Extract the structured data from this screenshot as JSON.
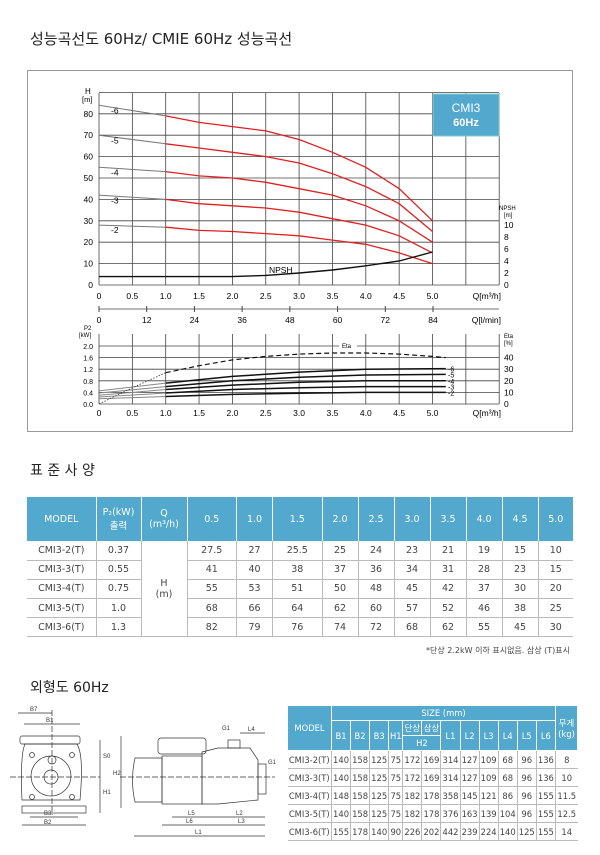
{
  "title": "성능곡선도 60Hz/ CMIE 60Hz 성능곡선",
  "chart_data": {
    "type": "line",
    "badge": [
      "CMI3",
      "60Hz"
    ],
    "upper": {
      "ylabel": "H",
      "yunit": "[m]",
      "yticks": [
        0,
        10,
        20,
        30,
        40,
        50,
        60,
        70,
        80
      ],
      "ylim": [
        0,
        90
      ],
      "y2label": "NPSH",
      "y2unit": "[m]",
      "y2ticks": [
        0,
        2,
        4,
        6,
        8,
        10
      ],
      "xlabel": "Q[m³/h]",
      "xticks": [
        "0",
        "0.5",
        "1.0",
        "1.5",
        "2.0",
        "2.5",
        "3.0",
        "3.5",
        "4.0",
        "4.5",
        "5.0"
      ],
      "xlim": [
        0,
        6
      ],
      "x2label": "Q[l/min]",
      "x2ticks": [
        "0",
        "12",
        "24",
        "36",
        "48",
        "60",
        "72",
        "84"
      ],
      "series": [
        {
          "name": "-6",
          "x": [
            0,
            1,
            1.5,
            2,
            2.5,
            3,
            3.5,
            4,
            4.5,
            5
          ],
          "y": [
            84,
            79,
            76,
            74,
            72,
            68,
            62,
            55,
            45,
            30
          ]
        },
        {
          "name": "-5",
          "x": [
            0,
            1,
            1.5,
            2,
            2.5,
            3,
            3.5,
            4,
            4.5,
            5
          ],
          "y": [
            70,
            66,
            64,
            62,
            60,
            57,
            52,
            46,
            38,
            25
          ]
        },
        {
          "name": "-4",
          "x": [
            0,
            1,
            1.5,
            2,
            2.5,
            3,
            3.5,
            4,
            4.5,
            5
          ],
          "y": [
            55,
            53,
            51,
            50,
            48,
            45,
            42,
            37,
            30,
            20
          ]
        },
        {
          "name": "-3",
          "x": [
            0,
            1,
            1.5,
            2,
            2.5,
            3,
            3.5,
            4,
            4.5,
            5
          ],
          "y": [
            42,
            40,
            38,
            37,
            36,
            34,
            31,
            28,
            23,
            15
          ]
        },
        {
          "name": "-2",
          "x": [
            0,
            1,
            1.5,
            2,
            2.5,
            3,
            3.5,
            4,
            4.5,
            5
          ],
          "y": [
            28,
            27,
            25.5,
            25,
            24,
            23,
            21,
            19,
            15,
            10
          ]
        }
      ],
      "npsh": {
        "name": "NPSH",
        "x": [
          0,
          1,
          1.5,
          2,
          2.5,
          3,
          3.5,
          4,
          4.5,
          5
        ],
        "y": [
          1.4,
          1.4,
          1.4,
          1.4,
          1.6,
          2.0,
          2.5,
          3.2,
          4.0,
          5.5
        ]
      }
    },
    "lower": {
      "ylabel": "P2",
      "yunit": "[kW]",
      "yticks": [
        "0.0",
        "0.4",
        "0.8",
        "1.2",
        "1.6",
        "2.0"
      ],
      "y2label": "Eta",
      "y2unit": "[%]",
      "y2ticks": [
        0,
        10,
        20,
        30,
        40
      ],
      "xlabel": "Q[m³/h]",
      "xticks": [
        "0",
        "0.5",
        "1.0",
        "1.5",
        "2.0",
        "2.5",
        "3.0",
        "3.5",
        "4.0",
        "4.5",
        "5.0"
      ],
      "series": [
        {
          "name": "-6",
          "x": [
            0,
            1,
            2,
            3,
            4,
            5.2
          ],
          "y": [
            0.45,
            0.72,
            0.95,
            1.1,
            1.2,
            1.22
          ]
        },
        {
          "name": "-5",
          "x": [
            0,
            1,
            2,
            3,
            4,
            5.2
          ],
          "y": [
            0.38,
            0.6,
            0.8,
            0.92,
            1.0,
            1.02
          ]
        },
        {
          "name": "-4",
          "x": [
            0,
            1,
            2,
            3,
            4,
            5.2
          ],
          "y": [
            0.3,
            0.5,
            0.65,
            0.75,
            0.8,
            0.8
          ]
        },
        {
          "name": "-3",
          "x": [
            0,
            1,
            2,
            3,
            4,
            5.2
          ],
          "y": [
            0.24,
            0.38,
            0.5,
            0.56,
            0.6,
            0.6
          ]
        },
        {
          "name": "-2",
          "x": [
            0,
            1,
            2,
            3,
            4,
            5.2
          ],
          "y": [
            0.18,
            0.26,
            0.33,
            0.37,
            0.4,
            0.4
          ]
        }
      ],
      "eta": {
        "name": "Eta",
        "x": [
          0,
          0.5,
          1,
          1.5,
          2,
          2.5,
          3,
          3.5,
          4,
          4.5,
          5,
          5.2
        ],
        "y": [
          0,
          14,
          27,
          33,
          38,
          41,
          43,
          44,
          44,
          43,
          41,
          40
        ]
      }
    }
  },
  "spec": {
    "heading": "표 준 사 양",
    "headers": [
      "MODEL",
      "P₂(kW)",
      "출력",
      "Q",
      "(m³/h)",
      "0.5",
      "1.0",
      "1.5",
      "2.0",
      "2.5",
      "3.0",
      "3.5",
      "4.0",
      "4.5",
      "5.0"
    ],
    "h_label": "H",
    "h_unit": "(m)",
    "rows": [
      {
        "model": "CMI3-2(T)",
        "p2": "0.37",
        "h": [
          "27.5",
          "27",
          "25.5",
          "25",
          "24",
          "23",
          "21",
          "19",
          "15",
          "10"
        ]
      },
      {
        "model": "CMI3-3(T)",
        "p2": "0.55",
        "h": [
          "41",
          "40",
          "38",
          "37",
          "36",
          "34",
          "31",
          "28",
          "23",
          "15"
        ]
      },
      {
        "model": "CMI3-4(T)",
        "p2": "0.75",
        "h": [
          "55",
          "53",
          "51",
          "50",
          "48",
          "45",
          "42",
          "37",
          "30",
          "20"
        ]
      },
      {
        "model": "CMI3-5(T)",
        "p2": "1.0",
        "h": [
          "68",
          "66",
          "64",
          "62",
          "60",
          "57",
          "52",
          "46",
          "38",
          "25"
        ]
      },
      {
        "model": "CMI3-6(T)",
        "p2": "1.3",
        "h": [
          "82",
          "79",
          "76",
          "74",
          "72",
          "68",
          "62",
          "55",
          "45",
          "30"
        ]
      }
    ],
    "note": "*단상 2.2kW 이하 표시없음. 삼상 (T)표시"
  },
  "dims": {
    "heading": "외형도 60Hz",
    "labels": {
      "b7": "B7",
      "b1": "B1",
      "b3": "B3",
      "b2": "B2",
      "s0": "S0",
      "h1": "H1",
      "h2": "H2",
      "g1a": "G1",
      "g1b": "G1",
      "l4": "L4",
      "l5": "L5",
      "l2": "L2",
      "l6": "L6",
      "l3": "L3",
      "l1": "L1"
    },
    "headers": {
      "model": "MODEL",
      "size": "SIZE (mm)",
      "weight": "무게",
      "weight_unit": "(kg)",
      "single": "단상",
      "three": "삼상",
      "h2": "H2",
      "cols": [
        "B1",
        "B2",
        "B3",
        "H1",
        "L1",
        "L2",
        "L3",
        "L4",
        "L5",
        "L6"
      ]
    },
    "rows": [
      [
        "CMI3-2(T)",
        "140",
        "158",
        "125",
        "75",
        "172",
        "169",
        "314",
        "127",
        "109",
        "68",
        "96",
        "136",
        "8"
      ],
      [
        "CMI3-3(T)",
        "140",
        "158",
        "125",
        "75",
        "172",
        "169",
        "314",
        "127",
        "109",
        "68",
        "96",
        "136",
        "10"
      ],
      [
        "CMI3-4(T)",
        "148",
        "158",
        "125",
        "75",
        "182",
        "178",
        "358",
        "145",
        "121",
        "86",
        "96",
        "155",
        "11.5"
      ],
      [
        "CMI3-5(T)",
        "140",
        "158",
        "125",
        "75",
        "182",
        "178",
        "376",
        "163",
        "139",
        "104",
        "96",
        "155",
        "12.5"
      ],
      [
        "CMI3-6(T)",
        "155",
        "178",
        "140",
        "90",
        "226",
        "202",
        "442",
        "239",
        "224",
        "140",
        "125",
        "155",
        "14"
      ]
    ]
  }
}
